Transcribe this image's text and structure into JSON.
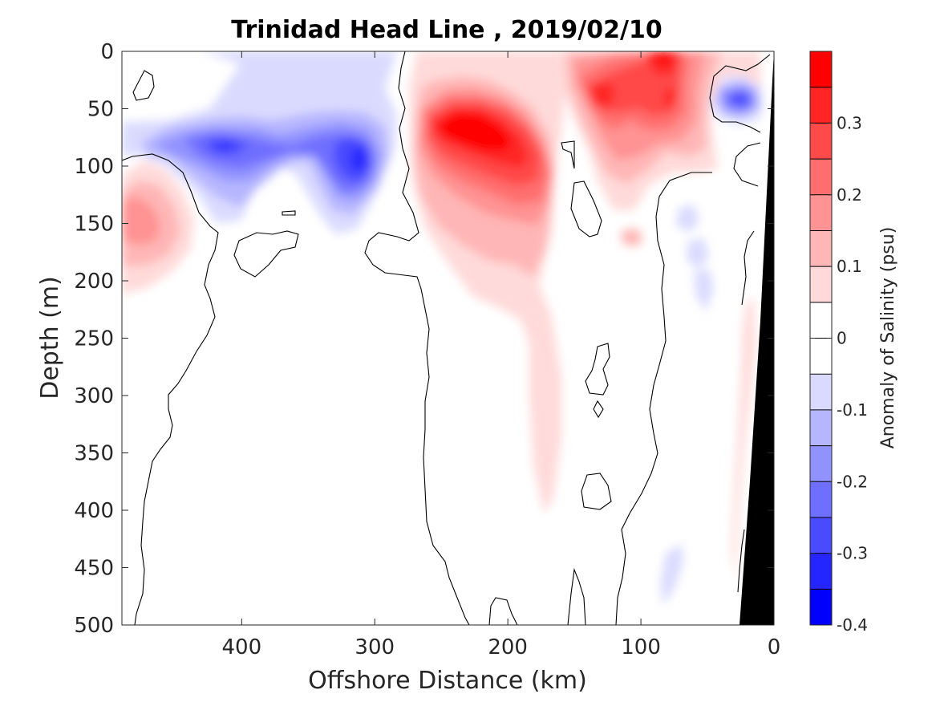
{
  "chart_data": {
    "type": "heatmap",
    "title": "Trinidad Head Line , 2019/02/10",
    "xlabel": "Offshore Distance (km)",
    "ylabel": "Depth (m)",
    "colorbar_label": "Anomaly of Salinity (psu)",
    "x_reversed": true,
    "y_reversed": true,
    "xlim": [
      0,
      490
    ],
    "ylim": [
      0,
      500
    ],
    "xticks": [
      400,
      300,
      200,
      100,
      0
    ],
    "yticks": [
      0,
      50,
      100,
      150,
      200,
      250,
      300,
      350,
      400,
      450,
      500
    ],
    "clim": [
      -0.4,
      0.4
    ],
    "colorbar_ticks": [
      "0.3",
      "0.2",
      "0.1",
      "0",
      "-0.1",
      "-0.2",
      "-0.3",
      "-0.4"
    ],
    "colorbar_tick_values": [
      0.3,
      0.2,
      0.1,
      0,
      -0.1,
      -0.2,
      -0.3,
      -0.4
    ],
    "colormap_levels": [
      "#0000ff",
      "#2525ff",
      "#4a4aff",
      "#6e6eff",
      "#9292ff",
      "#b6b6ff",
      "#dadaff",
      "#ffffff",
      "#ffffff",
      "#ffdada",
      "#ffb6b6",
      "#ff9292",
      "#ff6e6e",
      "#ff4a4a",
      "#ff2525",
      "#ff0000"
    ],
    "features": [
      {
        "name": "fresh core",
        "x": 313,
        "y": 93,
        "peak": -0.34
      },
      {
        "name": "fresh core",
        "x": 410,
        "y": 80,
        "peak": -0.28
      },
      {
        "name": "fresh core",
        "x": 25,
        "y": 40,
        "peak": -0.28
      },
      {
        "name": "salty core",
        "x": 228,
        "y": 75,
        "peak": 0.37
      },
      {
        "name": "salty core",
        "x": 80,
        "y": 5,
        "peak": 0.33
      },
      {
        "name": "salty core",
        "x": 130,
        "y": 38,
        "peak": 0.3
      },
      {
        "name": "salty core",
        "x": 478,
        "y": 140,
        "peak": 0.2
      }
    ],
    "shelf_bottom": {
      "color": "#000000",
      "x_at_top": 0,
      "x_at_bottom": 25
    }
  }
}
